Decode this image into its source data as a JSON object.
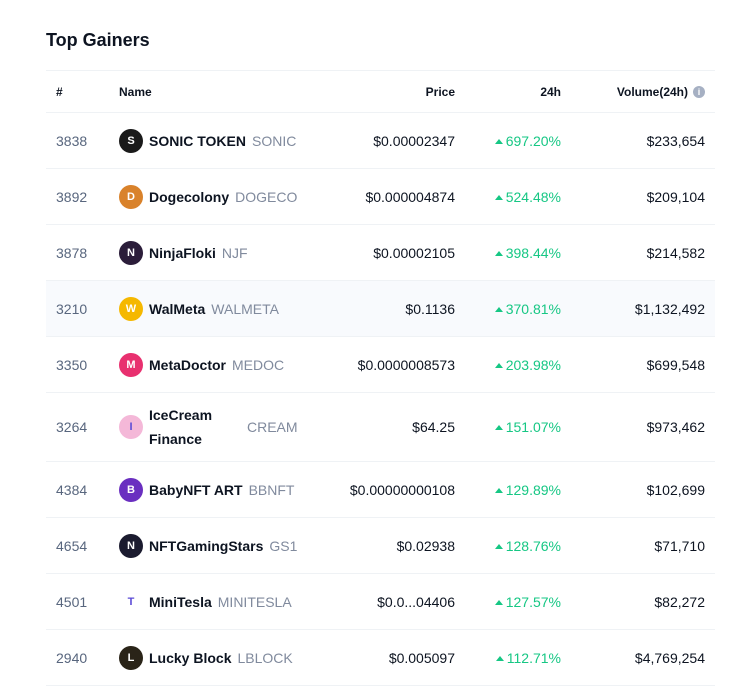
{
  "title": "Top Gainers",
  "headers": {
    "rank": "#",
    "name": "Name",
    "price": "Price",
    "change": "24h",
    "volume": "Volume(24h)",
    "info_icon": "i"
  },
  "rows": [
    {
      "rank": "3838",
      "name": "SONIC TOKEN",
      "symbol": "SONIC",
      "price": "$0.00002347",
      "change": "697.20%",
      "volume": "$233,654",
      "logo_color": "#1a1a1a",
      "logo_text": "S"
    },
    {
      "rank": "3892",
      "name": "Dogecolony",
      "symbol": "DOGECO",
      "price": "$0.000004874",
      "change": "524.48%",
      "volume": "$209,104",
      "logo_color": "#d9822b",
      "logo_text": "D"
    },
    {
      "rank": "3878",
      "name": "NinjaFloki",
      "symbol": "NJF",
      "price": "$0.00002105",
      "change": "398.44%",
      "volume": "$214,582",
      "logo_color": "#2b1d3a",
      "logo_text": "N"
    },
    {
      "rank": "3210",
      "name": "WalMeta",
      "symbol": "WALMETA",
      "price": "$0.1136",
      "change": "370.81%",
      "volume": "$1,132,492",
      "logo_color": "#f5b800",
      "logo_text": "W"
    },
    {
      "rank": "3350",
      "name": "MetaDoctor",
      "symbol": "MEDOC",
      "price": "$0.0000008573",
      "change": "203.98%",
      "volume": "$699,548",
      "logo_color": "#e8306f",
      "logo_text": "M"
    },
    {
      "rank": "3264",
      "name": "IceCream Finance",
      "symbol": "CREAM",
      "price": "$64.25",
      "change": "151.07%",
      "volume": "$973,462",
      "logo_color": "#f4b8d8",
      "logo_text": "I"
    },
    {
      "rank": "4384",
      "name": "BabyNFT ART",
      "symbol": "BBNFT",
      "price": "$0.00000000108",
      "change": "129.89%",
      "volume": "$102,699",
      "logo_color": "#6a2fc0",
      "logo_text": "B"
    },
    {
      "rank": "4654",
      "name": "NFTGamingStars",
      "symbol": "GS1",
      "price": "$0.02938",
      "change": "128.76%",
      "volume": "$71,710",
      "logo_color": "#1b1b2f",
      "logo_text": "N"
    },
    {
      "rank": "4501",
      "name": "MiniTesla",
      "symbol": "MINITESLA",
      "price": "$0.0...04406",
      "change": "127.57%",
      "volume": "$82,272",
      "logo_color": "#ffffff",
      "logo_text": "T"
    },
    {
      "rank": "2940",
      "name": "Lucky Block",
      "symbol": "LBLOCK",
      "price": "$0.005097",
      "change": "112.71%",
      "volume": "$4,769,254",
      "logo_color": "#2a2418",
      "logo_text": "L"
    }
  ]
}
